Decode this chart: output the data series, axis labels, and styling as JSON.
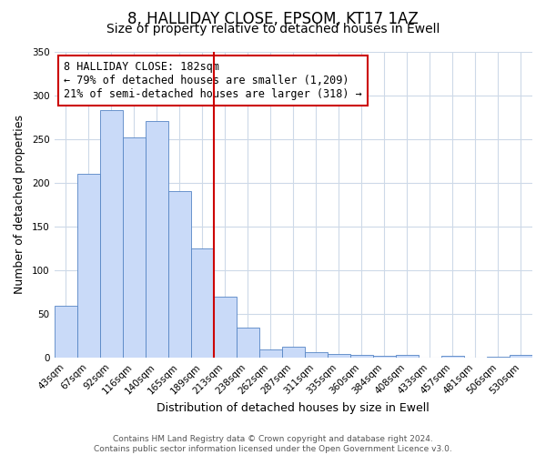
{
  "title": "8, HALLIDAY CLOSE, EPSOM, KT17 1AZ",
  "subtitle": "Size of property relative to detached houses in Ewell",
  "bar_labels": [
    "43sqm",
    "67sqm",
    "92sqm",
    "116sqm",
    "140sqm",
    "165sqm",
    "189sqm",
    "213sqm",
    "238sqm",
    "262sqm",
    "287sqm",
    "311sqm",
    "335sqm",
    "360sqm",
    "384sqm",
    "408sqm",
    "433sqm",
    "457sqm",
    "481sqm",
    "506sqm",
    "530sqm"
  ],
  "bar_values": [
    60,
    210,
    283,
    252,
    270,
    190,
    125,
    70,
    35,
    10,
    13,
    7,
    5,
    3,
    2,
    3,
    0,
    2,
    0,
    1,
    3
  ],
  "bar_color": "#c9daf8",
  "bar_edge_color": "#5585c5",
  "vline_position": 6.5,
  "vline_color": "#cc0000",
  "ylim": [
    0,
    350
  ],
  "yticks": [
    0,
    50,
    100,
    150,
    200,
    250,
    300,
    350
  ],
  "xlabel": "Distribution of detached houses by size in Ewell",
  "ylabel": "Number of detached properties",
  "annotation_title": "8 HALLIDAY CLOSE: 182sqm",
  "annotation_line1": "← 79% of detached houses are smaller (1,209)",
  "annotation_line2": "21% of semi-detached houses are larger (318) →",
  "annotation_box_color": "#ffffff",
  "annotation_box_edge_color": "#cc0000",
  "footer1": "Contains HM Land Registry data © Crown copyright and database right 2024.",
  "footer2": "Contains public sector information licensed under the Open Government Licence v3.0.",
  "background_color": "#ffffff",
  "grid_color": "#cdd9e8",
  "title_fontsize": 12,
  "subtitle_fontsize": 10,
  "axis_label_fontsize": 9,
  "tick_fontsize": 7.5,
  "annotation_fontsize": 8.5,
  "footer_fontsize": 6.5
}
